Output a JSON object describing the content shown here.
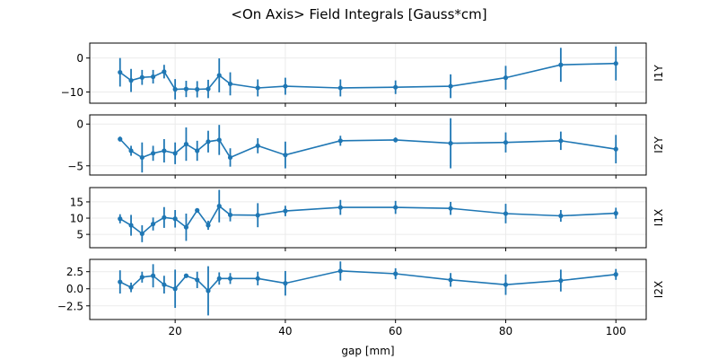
{
  "chart_data": {
    "type": "line",
    "title": "<On Axis> Field Integrals [Gauss*cm]",
    "xlabel": "gap [mm]",
    "xlim": [
      4.5,
      105.5
    ],
    "xticks": [
      20,
      40,
      60,
      80,
      100
    ],
    "grid": true,
    "color": "#1f77b4",
    "x": [
      10,
      12,
      14,
      16,
      18,
      20,
      22,
      24,
      26,
      28,
      30,
      35,
      40,
      50,
      60,
      70,
      80,
      90,
      100
    ],
    "panels": [
      {
        "ylabel": "I1Y",
        "ylim": [
          -13.3,
          4.4
        ],
        "yticks": [
          -10,
          0
        ],
        "yticklabels": [
          "−10",
          "0"
        ],
        "values": [
          -4.2,
          -6.6,
          -5.7,
          -5.5,
          -4.0,
          -9.2,
          -9.1,
          -9.2,
          -9.1,
          -5.1,
          -7.6,
          -8.8,
          -8.3,
          -8.8,
          -8.6,
          -8.3,
          -5.8,
          -2.0,
          -1.6
        ],
        "errors": [
          4.2,
          3.4,
          2.2,
          2.0,
          2.0,
          3.0,
          2.4,
          2.4,
          2.7,
          5.0,
          3.4,
          2.5,
          2.5,
          2.5,
          2.0,
          3.5,
          3.5,
          5.0,
          5.0
        ]
      },
      {
        "ylabel": "I2Y",
        "ylim": [
          -6.1,
          1.1
        ],
        "yticks": [
          -5,
          0
        ],
        "yticklabels": [
          "−5",
          "0"
        ],
        "values": [
          -1.8,
          -3.2,
          -4.0,
          -3.5,
          -3.2,
          -3.5,
          -2.4,
          -3.2,
          -2.1,
          -1.9,
          -4.0,
          -2.6,
          -3.7,
          -2.0,
          -1.9,
          -2.3,
          -2.2,
          -2.0,
          -3.0
        ],
        "errors": [
          0.3,
          0.6,
          1.8,
          0.9,
          1.4,
          1.3,
          2.0,
          1.2,
          1.3,
          1.8,
          1.1,
          0.9,
          1.6,
          0.6,
          0.3,
          3.0,
          1.2,
          1.1,
          1.7
        ]
      },
      {
        "ylabel": "I1X",
        "ylim": [
          0.9,
          19.4
        ],
        "yticks": [
          5,
          10,
          15
        ],
        "yticklabels": [
          "5",
          "10",
          "15"
        ],
        "values": [
          9.8,
          7.8,
          5.2,
          8.2,
          10.2,
          9.8,
          7.2,
          12.4,
          7.8,
          13.7,
          11.0,
          10.9,
          12.2,
          13.3,
          13.3,
          13.0,
          11.4,
          10.7,
          11.5
        ],
        "errors": [
          1.4,
          3.2,
          2.6,
          2.0,
          3.2,
          2.7,
          4.2,
          0.6,
          1.4,
          5.0,
          2.0,
          3.7,
          1.6,
          2.3,
          2.0,
          2.0,
          3.0,
          1.8,
          1.7
        ]
      },
      {
        "ylabel": "I2X",
        "ylim": [
          -4.5,
          4.3
        ],
        "yticks": [
          -2.5,
          0,
          2.5
        ],
        "yticklabels": [
          "−2.5",
          "0.0",
          "2.5"
        ],
        "values": [
          1.0,
          0.2,
          1.7,
          1.9,
          0.6,
          0.0,
          1.9,
          1.3,
          -0.3,
          1.5,
          1.5,
          1.5,
          0.8,
          2.6,
          2.2,
          1.3,
          0.6,
          1.2,
          2.1
        ],
        "errors": [
          1.7,
          0.7,
          0.8,
          1.7,
          1.3,
          2.8,
          0.2,
          1.2,
          3.6,
          0.9,
          0.8,
          1.0,
          1.8,
          1.4,
          0.8,
          1.0,
          1.5,
          1.6,
          0.8
        ]
      }
    ]
  }
}
